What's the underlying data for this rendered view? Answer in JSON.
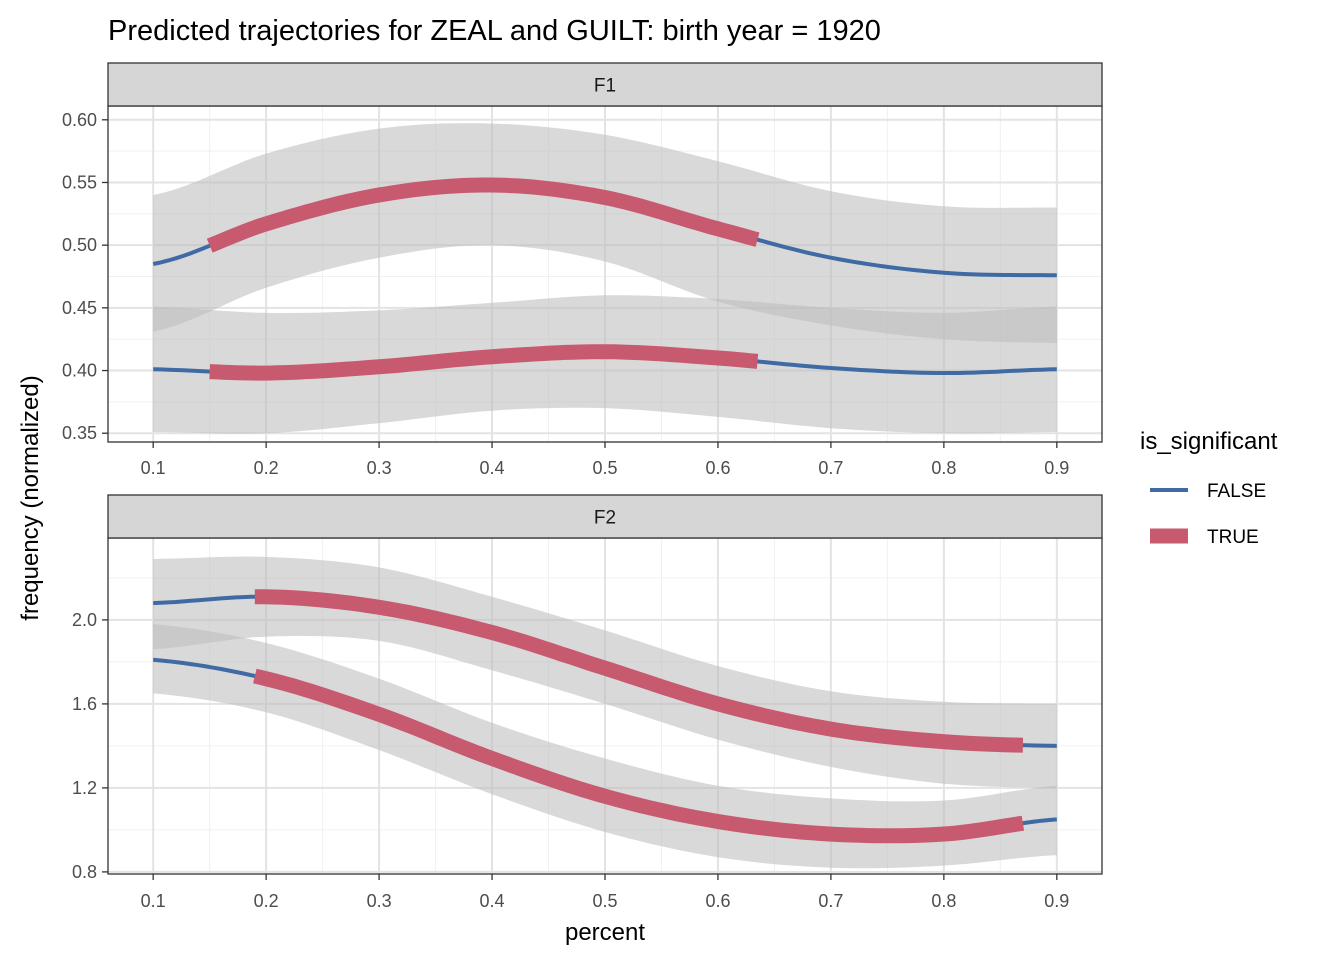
{
  "chart_data": {
    "type": "line",
    "title": "Predicted trajectories for ZEAL and GUILT: birth year = 1920",
    "xlabel": "percent",
    "ylabel": "frequency (normalized)",
    "x_ticks": [
      "0.1",
      "0.2",
      "0.3",
      "0.4",
      "0.5",
      "0.6",
      "0.7",
      "0.8",
      "0.9"
    ],
    "xlim": [
      0.06,
      0.94
    ],
    "grid": true,
    "legend": {
      "title": "is_significant",
      "placement": "right",
      "entries": [
        {
          "label": "FALSE",
          "color": "#3f6aa3"
        },
        {
          "label": "TRUE",
          "color": "#c75a6e"
        }
      ]
    },
    "colors": {
      "false_line": "#3f6aa3",
      "true_line": "#c75a6e",
      "ribbon": "#bdbdbd",
      "strip_bg": "#d6d6d6"
    },
    "facets": [
      {
        "name": "F1",
        "ylim": [
          0.343,
          0.611
        ],
        "y_ticks": [
          "0.35",
          "0.40",
          "0.45",
          "0.50",
          "0.55",
          "0.60"
        ],
        "y_tick_values": [
          0.35,
          0.4,
          0.45,
          0.5,
          0.55,
          0.6
        ],
        "y_minor": [
          0.375,
          0.425,
          0.475,
          0.525,
          0.575
        ],
        "series": [
          {
            "x": [
              0.1,
              0.2,
              0.3,
              0.4,
              0.5,
              0.6,
              0.7,
              0.8,
              0.9
            ],
            "y": [
              0.485,
              0.517,
              0.54,
              0.548,
              0.538,
              0.513,
              0.49,
              0.478,
              0.476
            ],
            "lower": [
              0.431,
              0.466,
              0.49,
              0.5,
              0.487,
              0.455,
              0.436,
              0.425,
              0.422
            ],
            "upper": [
              0.54,
              0.573,
              0.593,
              0.597,
              0.588,
              0.567,
              0.543,
              0.531,
              0.53
            ],
            "significant_range": [
              0.15,
              0.635
            ]
          },
          {
            "x": [
              0.1,
              0.2,
              0.3,
              0.4,
              0.5,
              0.6,
              0.7,
              0.8,
              0.9
            ],
            "y": [
              0.401,
              0.398,
              0.403,
              0.411,
              0.415,
              0.41,
              0.402,
              0.398,
              0.401
            ],
            "lower": [
              0.351,
              0.35,
              0.358,
              0.368,
              0.37,
              0.363,
              0.354,
              0.35,
              0.351
            ],
            "upper": [
              0.451,
              0.446,
              0.448,
              0.454,
              0.46,
              0.457,
              0.45,
              0.446,
              0.451
            ],
            "significant_range": [
              0.15,
              0.635
            ]
          }
        ]
      },
      {
        "name": "F2",
        "ylim": [
          0.79,
          2.39
        ],
        "y_ticks": [
          "0.8",
          "1.2",
          "1.6",
          "2.0"
        ],
        "y_tick_values": [
          0.8,
          1.2,
          1.6,
          2.0
        ],
        "y_minor": [
          1.0,
          1.4,
          1.8,
          2.2
        ],
        "series": [
          {
            "x": [
              0.1,
              0.2,
              0.3,
              0.4,
              0.5,
              0.6,
              0.7,
              0.8,
              0.9
            ],
            "y": [
              2.08,
              2.11,
              2.06,
              1.94,
              1.77,
              1.6,
              1.48,
              1.42,
              1.4
            ],
            "lower": [
              1.86,
              1.92,
              1.9,
              1.76,
              1.6,
              1.43,
              1.3,
              1.22,
              1.2
            ],
            "upper": [
              2.29,
              2.3,
              2.25,
              2.11,
              1.95,
              1.78,
              1.66,
              1.61,
              1.6
            ],
            "significant_range": [
              0.19,
              0.87
            ]
          },
          {
            "x": [
              0.1,
              0.2,
              0.3,
              0.4,
              0.5,
              0.6,
              0.7,
              0.8,
              0.9
            ],
            "y": [
              1.81,
              1.72,
              1.55,
              1.34,
              1.16,
              1.04,
              0.98,
              0.98,
              1.05
            ],
            "lower": [
              1.65,
              1.56,
              1.38,
              1.17,
              0.99,
              0.87,
              0.82,
              0.83,
              0.88
            ],
            "upper": [
              1.98,
              1.89,
              1.72,
              1.51,
              1.34,
              1.21,
              1.15,
              1.14,
              1.21
            ],
            "significant_range": [
              0.19,
              0.87
            ]
          }
        ]
      }
    ]
  }
}
